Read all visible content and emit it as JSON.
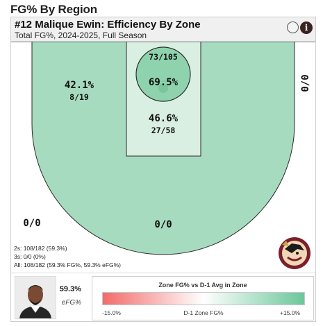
{
  "page": {
    "title": "FG% By Region"
  },
  "card": {
    "title": "#12 Malique Ewin: Efficiency By Zone",
    "subtitle": "Total FG%, 2024-2025, Full Season"
  },
  "icons": {
    "toggle": "circle-toggle-icon",
    "info": "info-icon",
    "info_glyph": "i"
  },
  "zones": {
    "left_midrange": {
      "pct": "42.1%",
      "made_att": "8/19"
    },
    "rim": {
      "made_att": "73/105",
      "pct": "69.5%"
    },
    "paint": {
      "pct": "46.6%",
      "made_att": "27/58"
    },
    "right_midrange": {
      "made_att": "0/0"
    },
    "left_corner_three": {
      "made_att": "0/0"
    },
    "top_three": {
      "made_att": "0/0"
    }
  },
  "summary": {
    "twos": "2s: 108/182 (59.3%)",
    "threes": "3s: 0/0 (0%)",
    "all": "All: 108/182 (59.3% FG%, 59.3% eFG%)"
  },
  "player": {
    "efg_value": "59.3%",
    "efg_label": "eFG%"
  },
  "legend": {
    "title": "Zone FG% vs D-1 Avg in Zone",
    "min_label": "-15.0%",
    "mid_label": "D-1 Zone FG%",
    "max_label": "+15.0%"
  },
  "colors": {
    "midrange_fill": "#a7dbbf",
    "paint_fill": "#d9efe2",
    "rim_fill": "#8fd3ae",
    "scale_low": "#f36a6a",
    "scale_high": "#6bc79a"
  }
}
